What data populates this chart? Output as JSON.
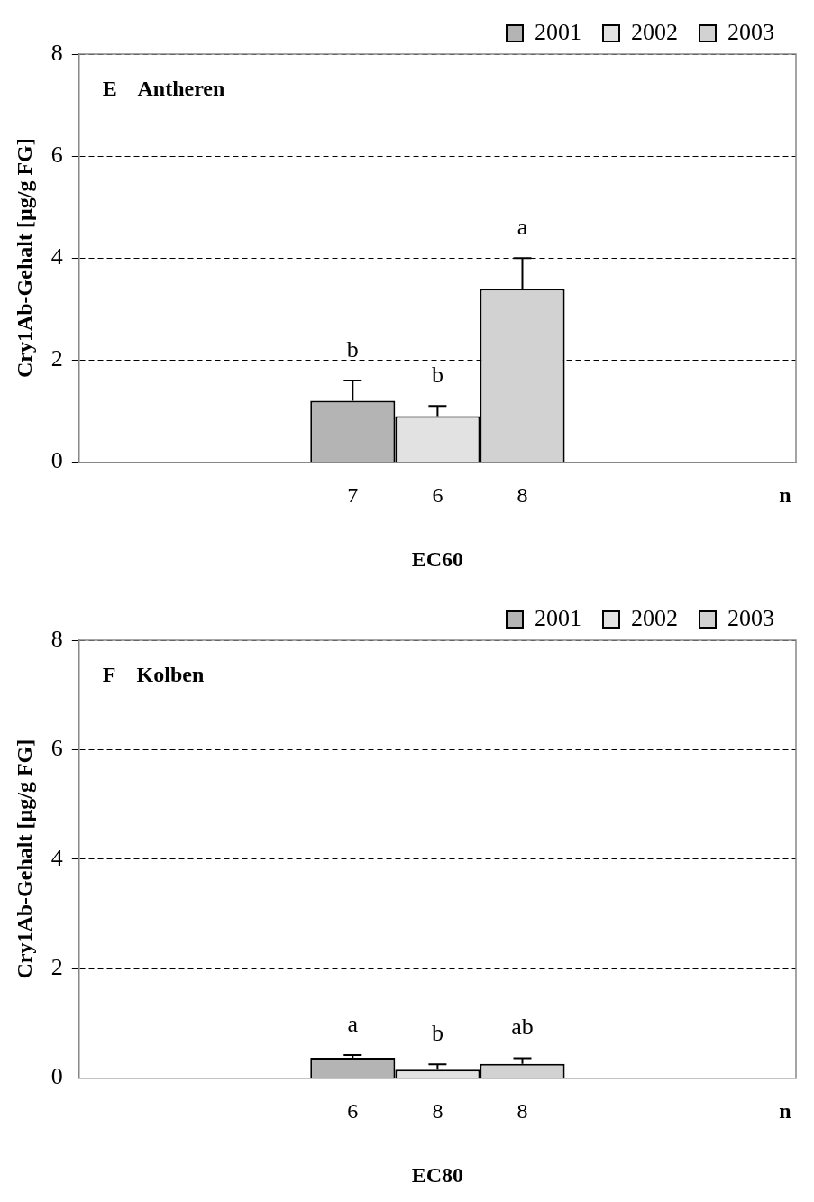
{
  "chart_data": [
    {
      "type": "bar",
      "title": "E    Antheren",
      "xlabel": "EC60",
      "ylabel": "Cry1Ab-Gehalt [µg/g FG]",
      "categories": [
        null
      ],
      "series": [
        {
          "name": "2001",
          "color": "#b4b4b4",
          "values": [
            1.2
          ],
          "errors": [
            0.4
          ]
        },
        {
          "name": "2002",
          "color": "#e2e2e2",
          "values": [
            0.9
          ],
          "errors": [
            0.2
          ]
        },
        {
          "name": "2003",
          "color": "#d2d2d2",
          "values": [
            3.4
          ],
          "errors": [
            0.6
          ]
        }
      ],
      "annotations": [
        {
          "text": "b",
          "y": 1.6
        },
        {
          "text": "b",
          "y": 1.1
        },
        {
          "text": "a",
          "y": 4.0
        },
        "7",
        "6",
        "8",
        "n"
      ],
      "ylim": [
        0,
        8
      ],
      "yticks": [
        0,
        2,
        4,
        6,
        8
      ],
      "grid": "y",
      "line_style": "dashed",
      "legend": "top right"
    },
    {
      "type": "bar",
      "title": "F    Kolben",
      "xlabel": "EC80",
      "ylabel": "Cry1Ab-Gehalt [µg/g FG]",
      "categories": [
        null
      ],
      "series": [
        {
          "name": "2001",
          "color": "#b4b4b4",
          "values": [
            0.37
          ],
          "errors": [
            0.05
          ]
        },
        {
          "name": "2002",
          "color": "#e2e2e2",
          "values": [
            0.15
          ],
          "errors": [
            0.1
          ]
        },
        {
          "name": "2003",
          "color": "#d2d2d2",
          "values": [
            0.26
          ],
          "errors": [
            0.1
          ]
        }
      ],
      "annotations": [
        {
          "text": "a",
          "y": 0.42
        },
        {
          "text": "b",
          "y": 0.25
        },
        {
          "text": "ab",
          "y": 0.36
        },
        "6",
        "8",
        "8",
        "n"
      ],
      "ylim": [
        0,
        8
      ],
      "yticks": [
        0,
        2,
        4,
        6,
        8
      ],
      "grid": "y",
      "line_style": "dashed",
      "legend": "top right"
    }
  ]
}
